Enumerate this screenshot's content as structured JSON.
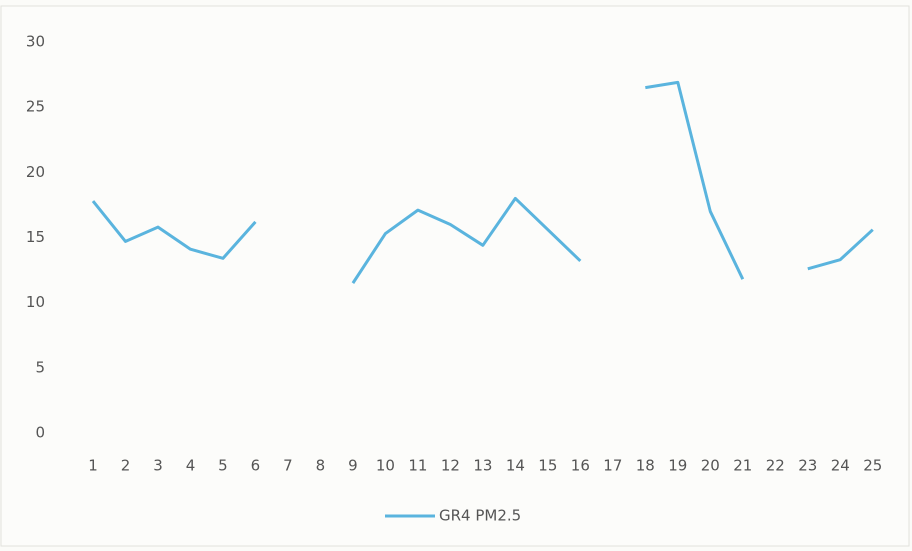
{
  "chart_data": {
    "type": "line",
    "categories": [
      "1",
      "2",
      "3",
      "4",
      "5",
      "6",
      "7",
      "8",
      "9",
      "10",
      "11",
      "12",
      "13",
      "14",
      "15",
      "16",
      "17",
      "18",
      "19",
      "20",
      "21",
      "22",
      "23",
      "24",
      "25"
    ],
    "series": [
      {
        "name": "GR4 PM2.5",
        "color": "#5ab4de",
        "values": [
          17.8,
          14.7,
          15.8,
          14.1,
          13.4,
          16.2,
          null,
          null,
          11.5,
          15.3,
          17.1,
          16.0,
          14.4,
          18.0,
          15.6,
          13.2,
          null,
          26.5,
          26.9,
          17.0,
          11.8,
          null,
          12.6,
          13.3,
          15.6
        ]
      }
    ],
    "ylim": [
      0,
      30
    ],
    "yticks": [
      0,
      5,
      10,
      15,
      20,
      25,
      30
    ],
    "grid": false,
    "legend": "bottom"
  }
}
